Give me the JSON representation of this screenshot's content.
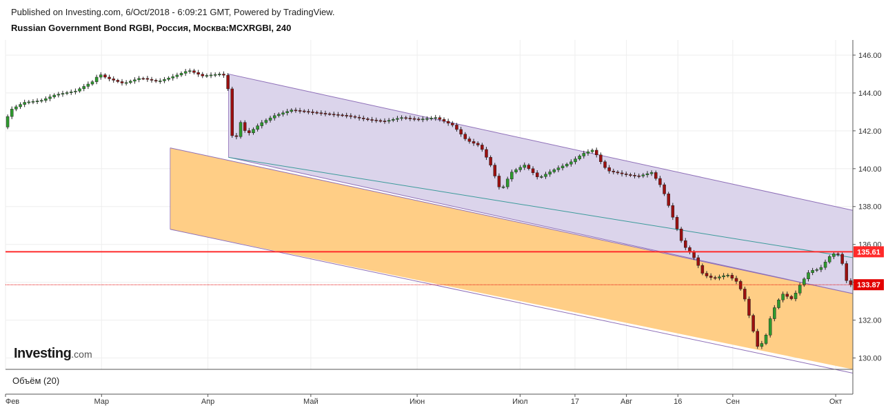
{
  "header": {
    "published": "Published on Investing.com, 6/Oct/2018 - 6:09:21 GMT, Powered by TradingView.",
    "title": "Russian Government Bond RGBI, Россия, Москва:MCXRGBI, 240"
  },
  "logo": {
    "name": "Investing",
    "domain": ".com"
  },
  "volume_label": "Объём (20)",
  "chart_data": {
    "type": "candlestick",
    "title": "Russian Government Bond RGBI, Россия, Москва:MCXRGBI, 240",
    "ylim": [
      129.4,
      146.8
    ],
    "y_ticks": [
      "146.00",
      "144.00",
      "142.00",
      "140.00",
      "138.00",
      "136.00",
      "134.00",
      "132.00",
      "130.00"
    ],
    "x_ticks": [
      "Фев",
      "Мар",
      "Апр",
      "Май",
      "Июн",
      "Июл",
      "17",
      "Авг",
      "16",
      "Сен",
      "Окт"
    ],
    "x_tick_dates": [
      "2018-02-01",
      "2018-03-01",
      "2018-04-01",
      "2018-05-01",
      "2018-06-01",
      "2018-07-01",
      "2018-07-17",
      "2018-08-01",
      "2018-08-16",
      "2018-09-01",
      "2018-10-01"
    ],
    "x_range": [
      "2018-02-01",
      "2018-10-06"
    ],
    "price_series": [
      [
        "2018-02-01",
        142.2
      ],
      [
        "2018-02-03",
        143.1
      ],
      [
        "2018-02-07",
        143.5
      ],
      [
        "2018-02-12",
        143.6
      ],
      [
        "2018-02-16",
        143.9
      ],
      [
        "2018-02-22",
        144.1
      ],
      [
        "2018-02-27",
        144.6
      ],
      [
        "2018-03-01",
        145.0
      ],
      [
        "2018-03-03",
        144.8
      ],
      [
        "2018-03-08",
        144.5
      ],
      [
        "2018-03-13",
        144.8
      ],
      [
        "2018-03-18",
        144.6
      ],
      [
        "2018-03-23",
        144.9
      ],
      [
        "2018-03-27",
        145.2
      ],
      [
        "2018-03-31",
        144.9
      ],
      [
        "2018-04-05",
        145.0
      ],
      [
        "2018-04-07",
        144.9
      ],
      [
        "2018-04-08",
        143.4
      ],
      [
        "2018-04-09",
        141.0
      ],
      [
        "2018-04-11",
        142.5
      ],
      [
        "2018-04-13",
        141.8
      ],
      [
        "2018-04-17",
        142.4
      ],
      [
        "2018-04-21",
        142.8
      ],
      [
        "2018-04-26",
        143.1
      ],
      [
        "2018-05-01",
        143.0
      ],
      [
        "2018-05-06",
        142.9
      ],
      [
        "2018-05-12",
        142.8
      ],
      [
        "2018-05-18",
        142.6
      ],
      [
        "2018-05-23",
        142.5
      ],
      [
        "2018-05-28",
        142.7
      ],
      [
        "2018-06-02",
        142.6
      ],
      [
        "2018-06-07",
        142.7
      ],
      [
        "2018-06-12",
        142.3
      ],
      [
        "2018-06-16",
        141.5
      ],
      [
        "2018-06-20",
        141.2
      ],
      [
        "2018-06-23",
        140.2
      ],
      [
        "2018-06-26",
        138.8
      ],
      [
        "2018-06-29",
        139.8
      ],
      [
        "2018-07-03",
        140.2
      ],
      [
        "2018-07-07",
        139.5
      ],
      [
        "2018-07-11",
        139.9
      ],
      [
        "2018-07-16",
        140.3
      ],
      [
        "2018-07-20",
        140.8
      ],
      [
        "2018-07-23",
        141.0
      ],
      [
        "2018-07-25",
        140.4
      ],
      [
        "2018-07-27",
        139.9
      ],
      [
        "2018-08-01",
        139.7
      ],
      [
        "2018-08-05",
        139.6
      ],
      [
        "2018-08-09",
        139.8
      ],
      [
        "2018-08-12",
        139.0
      ],
      [
        "2018-08-15",
        137.5
      ],
      [
        "2018-08-18",
        136.0
      ],
      [
        "2018-08-21",
        135.4
      ],
      [
        "2018-08-24",
        134.4
      ],
      [
        "2018-08-27",
        134.2
      ],
      [
        "2018-08-31",
        134.4
      ],
      [
        "2018-09-03",
        134.0
      ],
      [
        "2018-09-05",
        133.2
      ],
      [
        "2018-09-07",
        131.8
      ],
      [
        "2018-09-09",
        130.5
      ],
      [
        "2018-09-11",
        131.0
      ],
      [
        "2018-09-13",
        132.4
      ],
      [
        "2018-09-16",
        133.4
      ],
      [
        "2018-09-19",
        133.1
      ],
      [
        "2018-09-21",
        133.8
      ],
      [
        "2018-09-24",
        134.6
      ],
      [
        "2018-09-27",
        134.7
      ],
      [
        "2018-09-30",
        135.4
      ],
      [
        "2018-10-02",
        135.6
      ],
      [
        "2018-10-04",
        134.8
      ],
      [
        "2018-10-05",
        133.87
      ]
    ],
    "horizontal_lines": [
      {
        "price": 135.61,
        "label": "135.61",
        "color": "#ff2a2a",
        "style": "solid"
      },
      {
        "price": 133.87,
        "label": "133.87",
        "color": "#e30000",
        "style": "dotted"
      }
    ],
    "channels": [
      {
        "name": "",
        "color": "#d9d2ea",
        "border": "#8e6fb8",
        "upper": [
          [
            "2018-04-07",
            145.0
          ],
          [
            "2018-10-06",
            137.8
          ]
        ],
        "lower": [
          [
            "2018-04-07",
            140.6
          ],
          [
            "2018-10-06",
            133.4
          ]
        ]
      },
      {
        "name": "",
        "color": "#ffcb80",
        "border": "#8e6fb8",
        "upper": [
          [
            "2018-03-21",
            141.1
          ],
          [
            "2018-10-06",
            133.4
          ]
        ],
        "lower": [
          [
            "2018-03-21",
            136.8
          ],
          [
            "2018-10-06",
            129.2
          ]
        ]
      }
    ],
    "trend_line": {
      "color": "#3a9a9a",
      "from": [
        "2018-04-07",
        140.6
      ],
      "to": [
        "2018-10-06",
        135.3
      ]
    },
    "up_color": "#2e9b2e",
    "down_color": "#9b1010",
    "grid": true
  }
}
